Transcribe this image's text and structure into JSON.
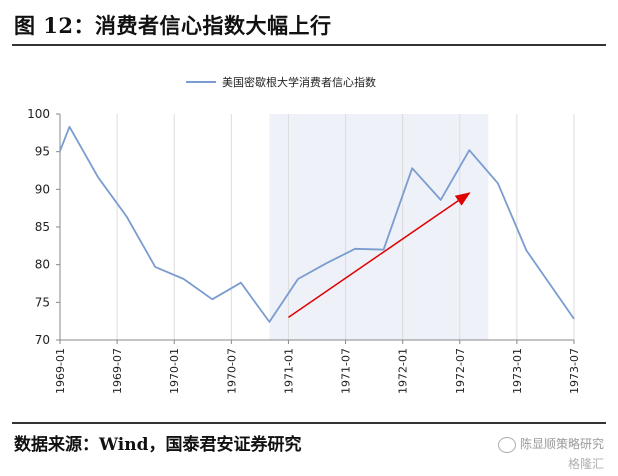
{
  "page": {
    "title": "图 12：消费者信心指数大幅上行",
    "source": "数据来源：Wind，国泰君安证券研究",
    "watermark": "陈显顺策略研究",
    "watermark2": "格隆汇"
  },
  "chart_data": {
    "type": "line",
    "title": "",
    "xlabel": "",
    "ylabel": "",
    "ylim": [
      70,
      100
    ],
    "yticks": [
      70,
      75,
      80,
      85,
      90,
      95,
      100
    ],
    "xlim": [
      "1969-01",
      "1973-07"
    ],
    "xticks": [
      "1969-01",
      "1969-07",
      "1970-01",
      "1970-07",
      "1971-01",
      "1971-07",
      "1972-01",
      "1972-07",
      "1973-01",
      "1973-07"
    ],
    "grid": "vertical",
    "legend": "top-center",
    "highlight_period": [
      "1970-11",
      "1972-10"
    ],
    "annotation": {
      "type": "arrow",
      "from": [
        "1971-01",
        73
      ],
      "to": [
        "1972-08",
        89.5
      ],
      "color": "#e00000"
    },
    "series": [
      {
        "name": "美国密歇根大学消费者信心指数",
        "color": "#7a9cd0",
        "points": [
          [
            "1969-01",
            95.1
          ],
          [
            "1969-02",
            98.3
          ],
          [
            "1969-05",
            91.6
          ],
          [
            "1969-08",
            86.4
          ],
          [
            "1969-11",
            79.7
          ],
          [
            "1970-02",
            78.1
          ],
          [
            "1970-05",
            75.4
          ],
          [
            "1970-08",
            77.6
          ],
          [
            "1970-11",
            72.4
          ],
          [
            "1971-02",
            78.1
          ],
          [
            "1971-05",
            80.2
          ],
          [
            "1971-08",
            82.1
          ],
          [
            "1971-11",
            82.0
          ],
          [
            "1972-02",
            92.8
          ],
          [
            "1972-05",
            88.6
          ],
          [
            "1972-08",
            95.2
          ],
          [
            "1972-11",
            90.8
          ],
          [
            "1973-02",
            81.9
          ],
          [
            "1973-07",
            72.8
          ]
        ]
      }
    ]
  }
}
